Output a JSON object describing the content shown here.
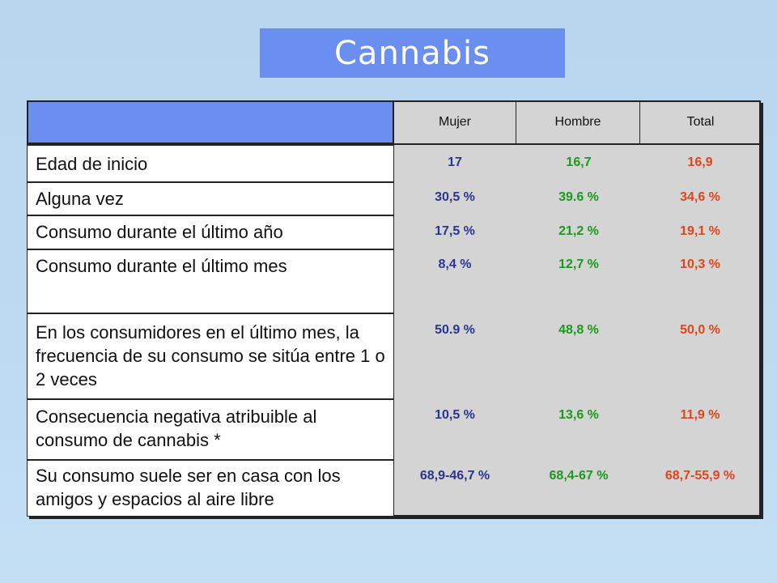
{
  "title": "Cannabis",
  "columns": [
    "Mujer",
    "Hombre",
    "Total"
  ],
  "rows": [
    {
      "label": "Edad de inicio",
      "mujer": "17",
      "hombre": "16,7",
      "total": "16,9"
    },
    {
      "label": "Alguna vez",
      "mujer": "30,5 %",
      "hombre": "39.6 %",
      "total": "34,6 %"
    },
    {
      "label": "Consumo durante el último año",
      "mujer": "17,5 %",
      "hombre": "21,2 %",
      "total": "19,1 %"
    },
    {
      "label": "Consumo durante el último mes",
      "mujer": "8,4 %",
      "hombre": "12,7 %",
      "total": "10,3 %"
    },
    {
      "label": "En los consumidores en el último mes, la frecuencia de su consumo se sitúa entre 1 o 2 veces",
      "mujer": "50.9 %",
      "hombre": "48,8 %",
      "total": "50,0 %"
    },
    {
      "label": "Consecuencia negativa atribuible al consumo de cannabis *",
      "mujer": "10,5 %",
      "hombre": "13,6 %",
      "total": "11,9  %"
    },
    {
      "label": "Su consumo suele ser en casa con los amigos y espacios al aire libre",
      "mujer": "68,9-46,7 %",
      "hombre": "68,4-67 %",
      "total": "68,7-55,9 %"
    }
  ],
  "colors": {
    "header_blue": "#6b8ff0",
    "mujer": "#2a3590",
    "hombre": "#1a9a1a",
    "total": "#e0441a"
  }
}
